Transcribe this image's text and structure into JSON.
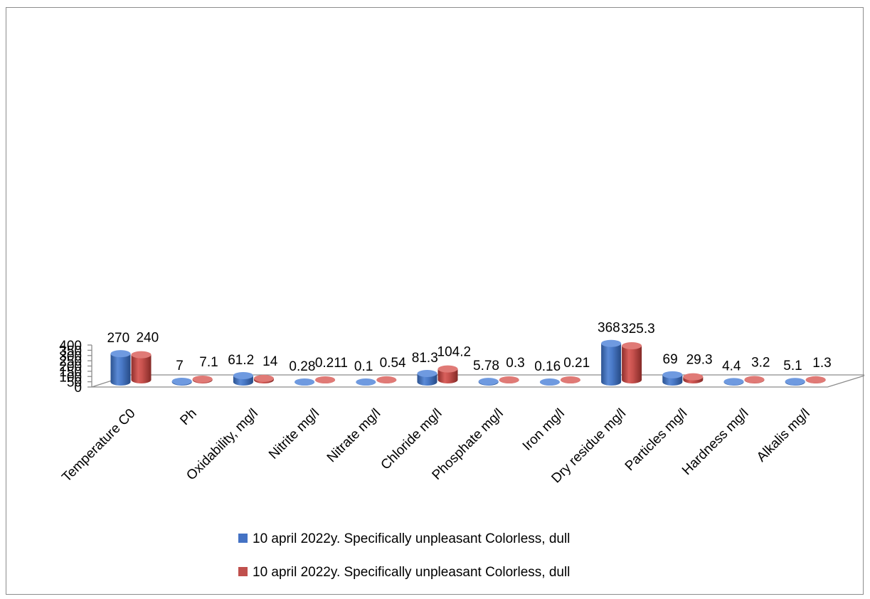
{
  "chart_data": {
    "type": "bar",
    "style": "3d-cylinder",
    "title": "",
    "xlabel": "",
    "ylabel": "",
    "ylim": [
      0,
      400
    ],
    "yticks": [
      0,
      50,
      100,
      150,
      200,
      250,
      300,
      350,
      400
    ],
    "grid": false,
    "legend_position": "bottom",
    "categories": [
      "Temperature C0",
      "Ph",
      "Oxidability, mg/l",
      "Nitrite mg/l",
      "Nitrate mg/l",
      "Chloride mg/l",
      "Phosphate mg/l",
      "Iron mg/l",
      "Dry residue mg/l",
      "Particles mg/l",
      "Hardness mg/l",
      "Alkalis mg/l"
    ],
    "series": [
      {
        "name": "10 april 2022y. Specifically unpleasant Colorless, dull",
        "color": "#4472C4",
        "values": [
          270,
          7,
          61.2,
          0.28,
          0.1,
          81.3,
          5.78,
          0.16,
          368,
          69,
          4.4,
          5.1
        ],
        "labels": [
          "270",
          "7",
          "61.2",
          "0.28",
          "0.1",
          "81.3",
          "5.78",
          "0.16",
          "368",
          "69",
          "4.4",
          "5.1"
        ]
      },
      {
        "name": "10 april 2022y. Specifically unpleasant Colorless, dull",
        "color": "#C0504D",
        "values": [
          240,
          7.1,
          14,
          0.211,
          0.54,
          104.2,
          0.3,
          0.21,
          325.3,
          29.3,
          3.2,
          1.3
        ],
        "labels": [
          "240",
          "7.1",
          "14",
          "0.211",
          "0.54",
          "104.2",
          "0.3",
          "0.21",
          "325.3",
          "29.3",
          "3.2",
          "1.3"
        ]
      }
    ]
  }
}
